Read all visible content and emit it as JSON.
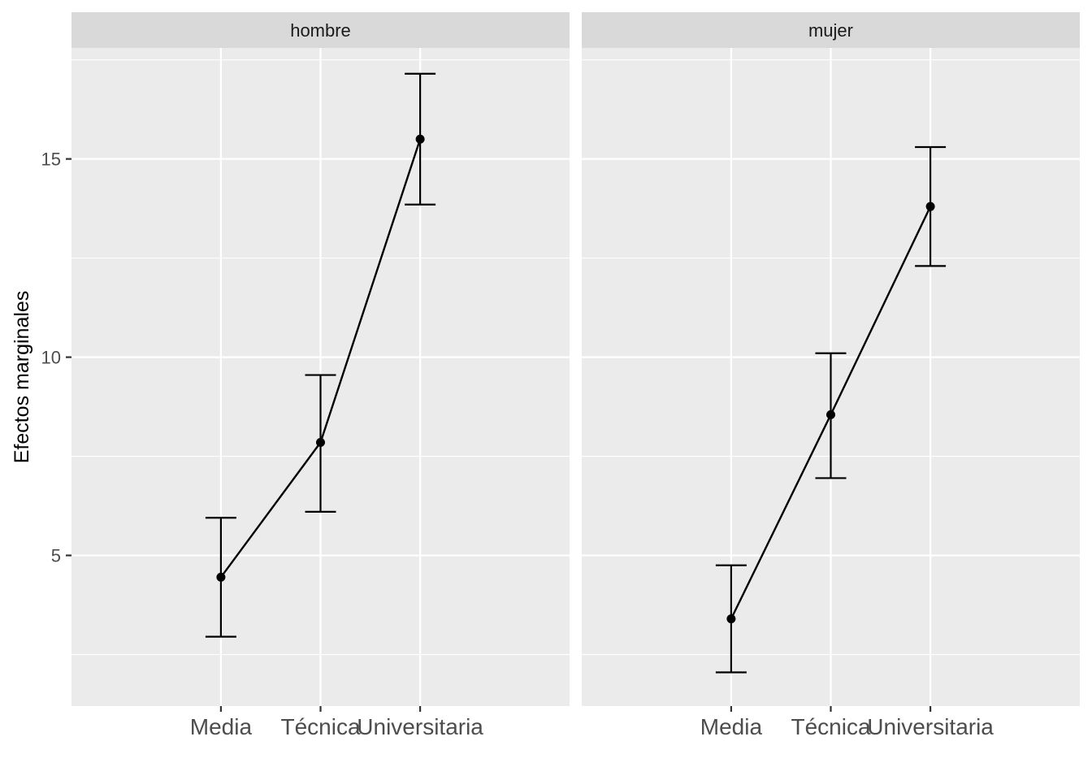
{
  "chart_data": {
    "type": "line",
    "facet_type": "facet_wrap",
    "categories": [
      "Media",
      "Técnica",
      "Universitaria"
    ],
    "ylabel": "Efectos marginales",
    "xlabel": "",
    "ylim": [
      1.2,
      17.8
    ],
    "yticks": [
      5,
      10,
      15
    ],
    "grid": true,
    "error_bars": true,
    "panels": [
      {
        "strip": "hombre",
        "values": [
          4.45,
          7.85,
          15.5
        ],
        "lower": [
          2.95,
          6.1,
          13.85
        ],
        "upper": [
          5.95,
          9.55,
          17.15
        ]
      },
      {
        "strip": "mujer",
        "values": [
          3.4,
          8.55,
          13.8
        ],
        "lower": [
          2.05,
          6.95,
          12.3
        ],
        "upper": [
          4.75,
          10.1,
          15.3
        ]
      }
    ],
    "colors": {
      "panel_bg": "#ebebeb",
      "strip_bg": "#d9d9d9",
      "grid": "#ffffff",
      "line": "#000000"
    }
  }
}
